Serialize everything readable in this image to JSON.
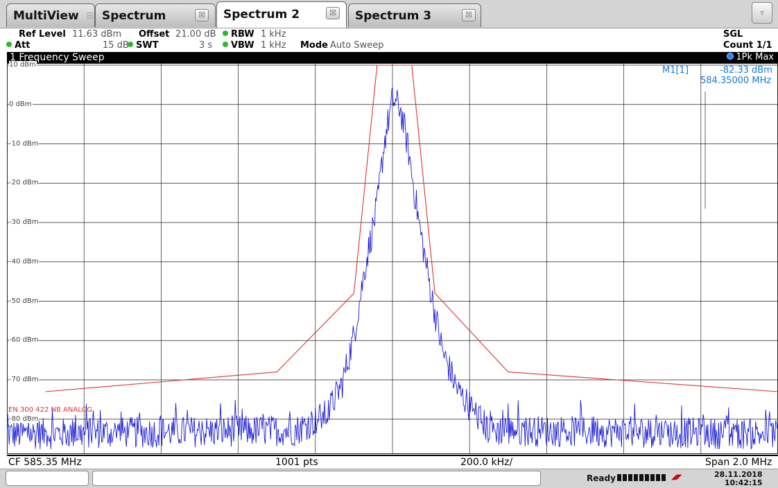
{
  "tabs": [
    {
      "label": "MultiView",
      "close": ""
    },
    {
      "label": "Spectrum",
      "close": "☒"
    },
    {
      "label": "Spectrum 2",
      "close": "☒"
    },
    {
      "label": "Spectrum 3",
      "close": "☒"
    }
  ],
  "tab_menu_glyph": "▿",
  "settings": {
    "ref_level_label": "Ref Level",
    "ref_level_value": "11.63 dBm",
    "offset_label": "Offset",
    "offset_value": "21.00 dB",
    "rbw_label": "RBW",
    "rbw_value": "1 kHz",
    "att_label": "Att",
    "att_value": "15 dB",
    "swt_label": "SWT",
    "swt_value": "3 s",
    "vbw_label": "VBW",
    "vbw_value": "1 kHz",
    "mode_label": "Mode",
    "mode_value": "Auto Sweep",
    "sgl": "SGL",
    "count": "Count 1/1"
  },
  "window": {
    "title": "1 Frequency Sweep",
    "trace_label": "1Pk Max"
  },
  "marker": {
    "name": "M1[1]",
    "level": "-82.33 dBm",
    "freq": "584.35000 MHz"
  },
  "limit_line_label": "EN 300 422 NB ANALOG",
  "footer": {
    "cf": "CF 585.35 MHz",
    "pts": "1001 pts",
    "div": "200.0 kHz/",
    "span": "Span 2.0 MHz"
  },
  "status": {
    "ready": "Ready",
    "date": "28.11.2018",
    "time": "10:42:15"
  },
  "colors": {
    "trace": "#1a1ad8",
    "limit": "#e03030",
    "marker": "#1878d8",
    "grid": "#000000"
  },
  "chart_data": {
    "type": "line",
    "title": "1 Frequency Sweep",
    "xlabel": "",
    "ylabel": "",
    "x_center_mhz": 585.35,
    "x_span_mhz": 2.0,
    "x_range_mhz": [
      584.35,
      586.35
    ],
    "ylim": [
      -90,
      10
    ],
    "y_ticks": [
      "10 dBm",
      "0 dBm",
      "-10 dBm",
      "-20 dBm",
      "-30 dBm",
      "-40 dBm",
      "-50 dBm",
      "-60 dBm",
      "-70 dBm",
      "-80 dBm"
    ],
    "y_tick_values": [
      10,
      0,
      -10,
      -20,
      -30,
      -40,
      -50,
      -60,
      -70,
      -80
    ],
    "grid": true,
    "series": [
      {
        "name": "1Pk Max",
        "noise_floor_dbm": -84,
        "x": [
          584.35,
          585.1,
          585.18,
          585.22,
          585.25,
          585.28,
          585.31,
          585.33,
          585.35,
          585.37,
          585.39,
          585.42,
          585.45,
          585.48,
          585.52,
          585.6,
          586.35
        ],
        "y": [
          -83,
          -82,
          -78,
          -70,
          -58,
          -40,
          -25,
          -8,
          2,
          0,
          -10,
          -30,
          -47,
          -62,
          -72,
          -82,
          -83
        ]
      },
      {
        "name": "EN 300 422 NB ANALOG",
        "x": [
          584.45,
          585.05,
          585.25,
          585.31,
          585.4,
          585.46,
          585.65,
          586.35
        ],
        "y": [
          -73,
          -68,
          -48,
          10,
          10,
          -48,
          -68,
          -73
        ]
      }
    ]
  }
}
